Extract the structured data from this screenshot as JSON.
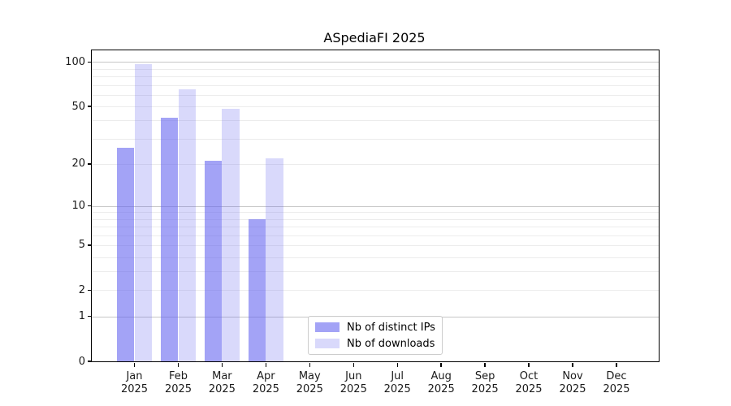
{
  "chart_data": {
    "type": "bar",
    "title": "ASpediaFI 2025",
    "year": "2025",
    "months": [
      "Jan",
      "Feb",
      "Mar",
      "Apr",
      "May",
      "Jun",
      "Jul",
      "Aug",
      "Sep",
      "Oct",
      "Nov",
      "Dec"
    ],
    "series": [
      {
        "name": "Nb of distinct IPs",
        "color": "rgba(102,102,240,0.6)",
        "values": [
          26,
          42,
          21,
          8,
          null,
          null,
          null,
          null,
          null,
          null,
          null,
          null
        ]
      },
      {
        "name": "Nb of downloads",
        "color": "rgba(102,102,240,0.25)",
        "values": [
          97,
          65,
          48,
          22,
          null,
          null,
          null,
          null,
          null,
          null,
          null,
          null
        ]
      }
    ],
    "yscale": "log10(value+1)",
    "yticks": [
      0,
      1,
      2,
      5,
      10,
      20,
      50,
      100
    ],
    "ylim": [
      0,
      120
    ],
    "grid_major_values": [
      1,
      10,
      100
    ],
    "grid_minor_values": [
      2,
      3,
      4,
      5,
      6,
      7,
      8,
      9,
      20,
      30,
      40,
      50,
      60,
      70,
      80,
      90
    ],
    "legend_position": "lower center",
    "colors": {
      "bar_distinct_ips": "rgba(102,102,240,0.6)",
      "bar_downloads": "rgba(102,102,240,0.25)",
      "grid_major": "#c6c6c6",
      "grid_minor": "#ececec",
      "axis": "#000000"
    }
  }
}
